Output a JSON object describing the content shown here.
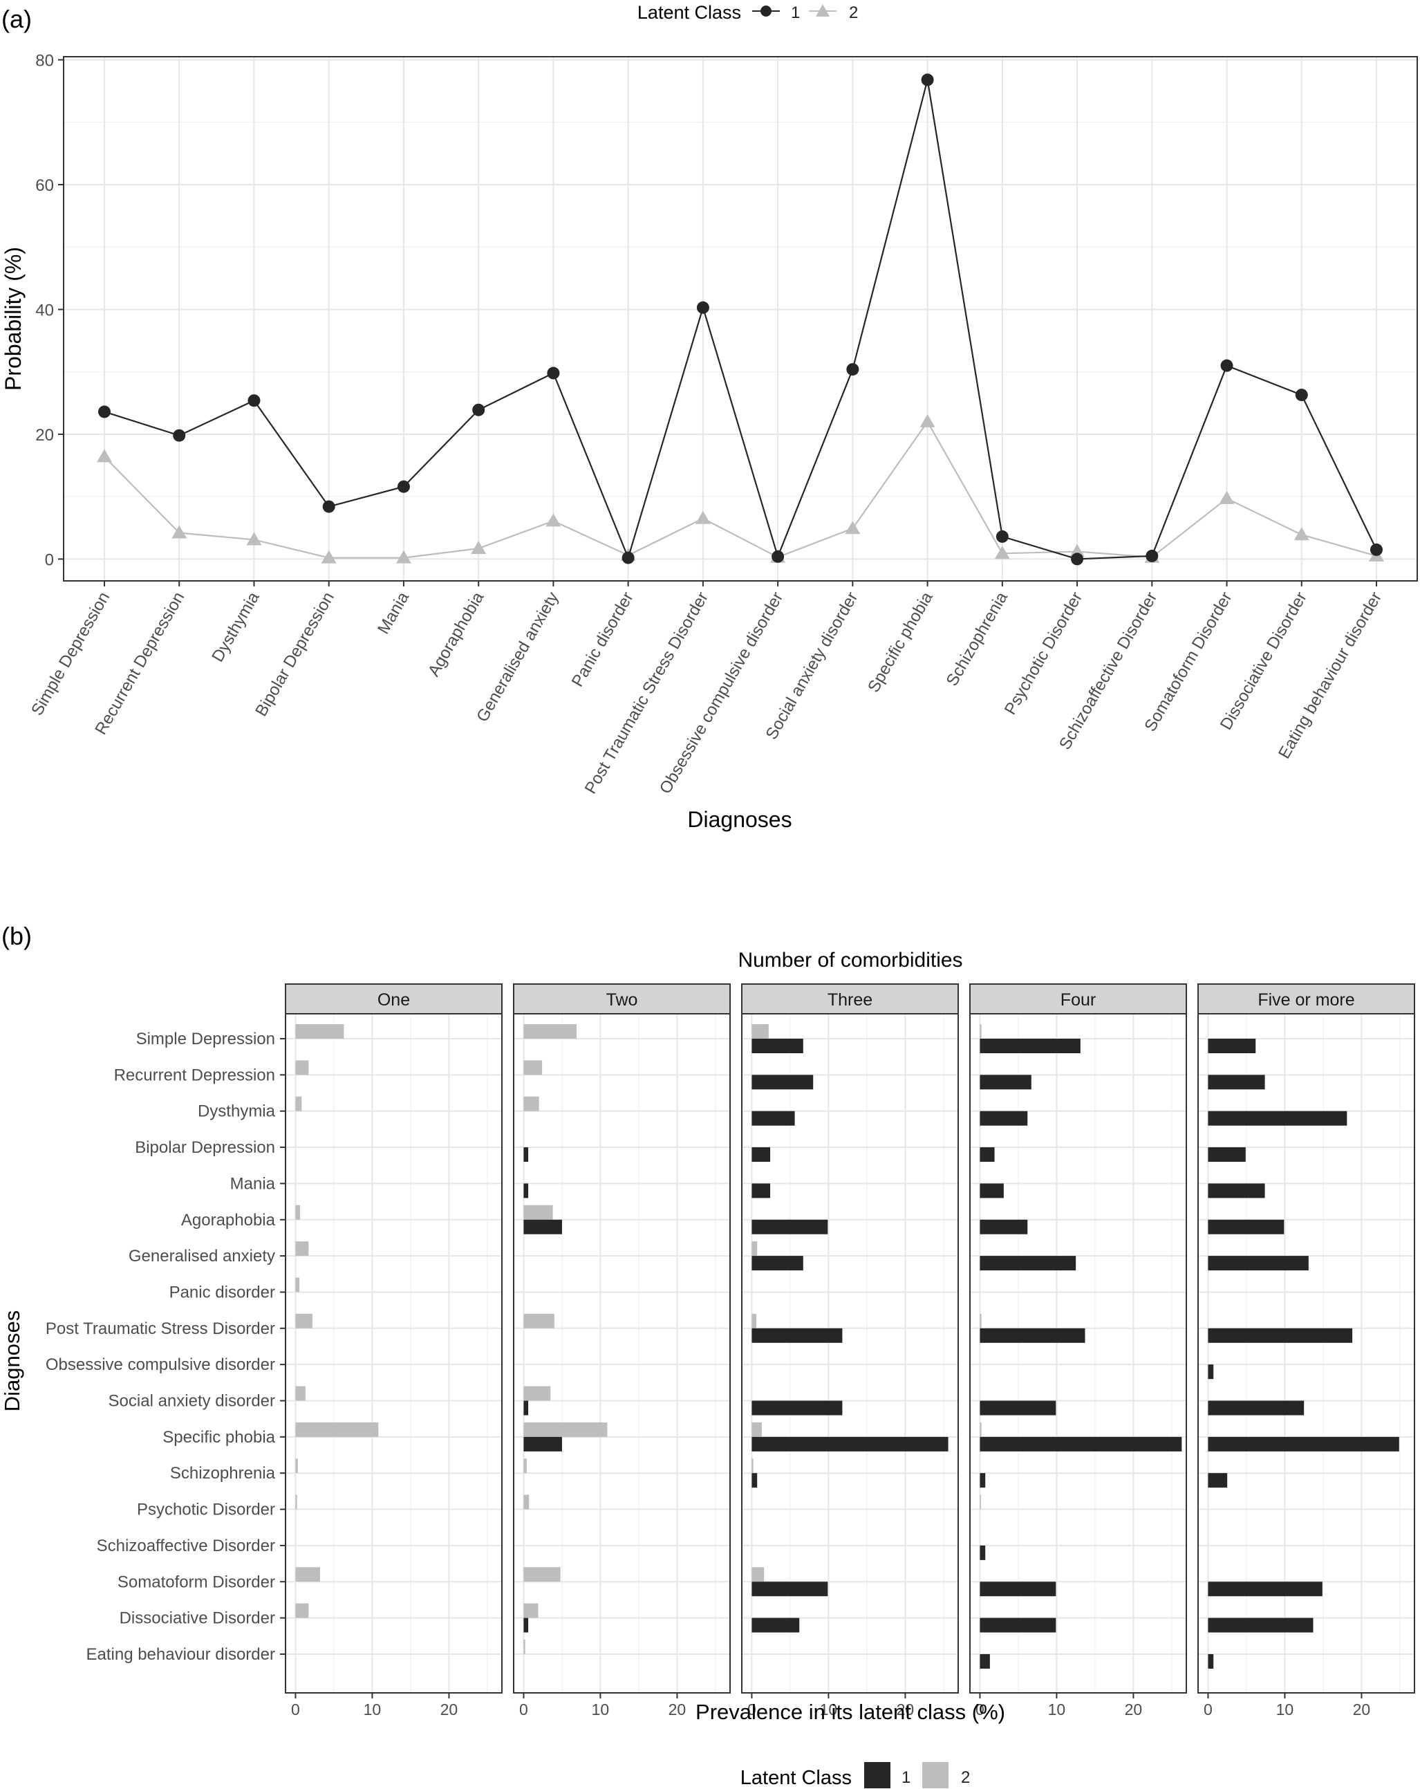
{
  "panels": {
    "a": {
      "tag": "(a)",
      "legend": {
        "title": "Latent Class",
        "labels": [
          "1",
          "2"
        ]
      }
    },
    "b": {
      "tag": "(b)",
      "legend": {
        "title": "Latent Class",
        "labels": [
          "1",
          "2"
        ]
      }
    }
  },
  "colors": {
    "class1": "#262626",
    "class2": "#bdbdbd",
    "strip": "#d3d3d3",
    "grid": "#e6e6e6"
  },
  "chart_data": [
    {
      "type": "line",
      "title": "",
      "xlabel": "Diagnoses",
      "ylabel": "Probability (%)",
      "ylim": [
        -3.5,
        80.5
      ],
      "yticks": [
        0,
        20,
        40,
        60,
        80
      ],
      "grid": true,
      "legend_position": "top",
      "categories": [
        "Simple Depression",
        "Recurrent Depression",
        "Dysthymia",
        "Bipolar Depression",
        "Mania",
        "Agoraphobia",
        "Generalised anxiety",
        "Panic disorder",
        "Post Traumatic Stress Disorder",
        "Obsessive compulsive disorder",
        "Social anxiety disorder",
        "Specific phobia",
        "Schizophrenia",
        "Psychotic Disorder",
        "Schizoaffective Disorder",
        "Somatoform Disorder",
        "Dissociative Disorder",
        "Eating behaviour disorder"
      ],
      "series": [
        {
          "name": "1",
          "marker": "circle",
          "values": [
            23.6,
            19.8,
            25.4,
            8.4,
            11.6,
            23.9,
            29.8,
            0.2,
            40.3,
            0.4,
            30.4,
            76.8,
            3.6,
            0.0,
            0.5,
            31.0,
            26.3,
            1.5
          ]
        },
        {
          "name": "2",
          "marker": "triangle",
          "values": [
            16.4,
            4.2,
            3.1,
            0.2,
            0.2,
            1.7,
            6.1,
            0.6,
            6.5,
            0.3,
            4.9,
            22.0,
            0.9,
            1.2,
            0.3,
            9.7,
            3.9,
            0.5
          ]
        }
      ]
    },
    {
      "type": "bar",
      "orientation": "horizontal",
      "facet_title": "Number of comorbidities",
      "xlabel": "Prevalence in its latent class (%)",
      "ylabel": "Diagnoses",
      "xlim": [
        -1.3,
        26.9
      ],
      "xticks": [
        0,
        10,
        20
      ],
      "grid": true,
      "legend_position": "bottom",
      "categories": [
        "Simple Depression",
        "Recurrent Depression",
        "Dysthymia",
        "Bipolar Depression",
        "Mania",
        "Agoraphobia",
        "Generalised anxiety",
        "Panic disorder",
        "Post Traumatic Stress Disorder",
        "Obsessive compulsive disorder",
        "Social anxiety disorder",
        "Specific phobia",
        "Schizophrenia",
        "Psychotic Disorder",
        "Schizoaffective Disorder",
        "Somatoform Disorder",
        "Dissociative Disorder",
        "Eating behaviour disorder"
      ],
      "facets": [
        {
          "name": "One",
          "series": [
            {
              "name": "1",
              "values": [
                0,
                0,
                0,
                0,
                0,
                0,
                0,
                0,
                0,
                0,
                0,
                0,
                0,
                0,
                0,
                0,
                0,
                0
              ]
            },
            {
              "name": "2",
              "values": [
                6.3,
                1.7,
                0.8,
                0,
                0,
                0.6,
                1.7,
                0.5,
                2.2,
                0,
                1.3,
                10.8,
                0.3,
                0.2,
                0,
                3.2,
                1.7,
                0
              ]
            }
          ]
        },
        {
          "name": "Two",
          "series": [
            {
              "name": "1",
              "values": [
                0,
                0,
                0,
                0.6,
                0.6,
                5.0,
                0,
                0,
                0,
                0,
                0.6,
                5.0,
                0,
                0,
                0,
                0,
                0.6,
                0
              ]
            },
            {
              "name": "2",
              "values": [
                6.9,
                2.4,
                2.0,
                0,
                0,
                3.8,
                0,
                0,
                4.0,
                0,
                3.5,
                10.9,
                0.4,
                0.7,
                0,
                4.8,
                1.9,
                0.2
              ]
            }
          ]
        },
        {
          "name": "Three",
          "series": [
            {
              "name": "1",
              "values": [
                6.7,
                8.0,
                5.6,
                2.4,
                2.4,
                9.9,
                6.7,
                0,
                11.8,
                0,
                11.8,
                25.6,
                0.7,
                0,
                0,
                9.9,
                6.2,
                0
              ]
            },
            {
              "name": "2",
              "values": [
                2.2,
                0,
                0,
                0,
                0,
                0,
                0.7,
                0,
                0.6,
                0,
                0,
                1.3,
                0.2,
                0,
                0,
                1.6,
                0,
                0
              ]
            }
          ]
        },
        {
          "name": "Four",
          "series": [
            {
              "name": "1",
              "values": [
                13.1,
                6.7,
                6.2,
                1.9,
                3.1,
                6.2,
                12.5,
                0,
                13.7,
                0,
                9.9,
                26.3,
                0.7,
                0,
                0.7,
                9.9,
                9.9,
                1.3
              ]
            },
            {
              "name": "2",
              "values": [
                0.2,
                0,
                0,
                0,
                0,
                0,
                0,
                0,
                0.2,
                0,
                0,
                0.2,
                0,
                0.1,
                0,
                0,
                0,
                0
              ]
            }
          ]
        },
        {
          "name": "Five or more",
          "series": [
            {
              "name": "1",
              "values": [
                6.2,
                7.4,
                18.1,
                4.9,
                7.4,
                9.9,
                13.1,
                0,
                18.8,
                0.7,
                12.5,
                24.9,
                2.5,
                0,
                0,
                14.9,
                13.7,
                0.7
              ]
            },
            {
              "name": "2",
              "values": [
                0,
                0,
                0,
                0,
                0,
                0,
                0,
                0,
                0,
                0,
                0,
                0,
                0,
                0,
                0,
                0,
                0,
                0
              ]
            }
          ]
        }
      ]
    }
  ]
}
